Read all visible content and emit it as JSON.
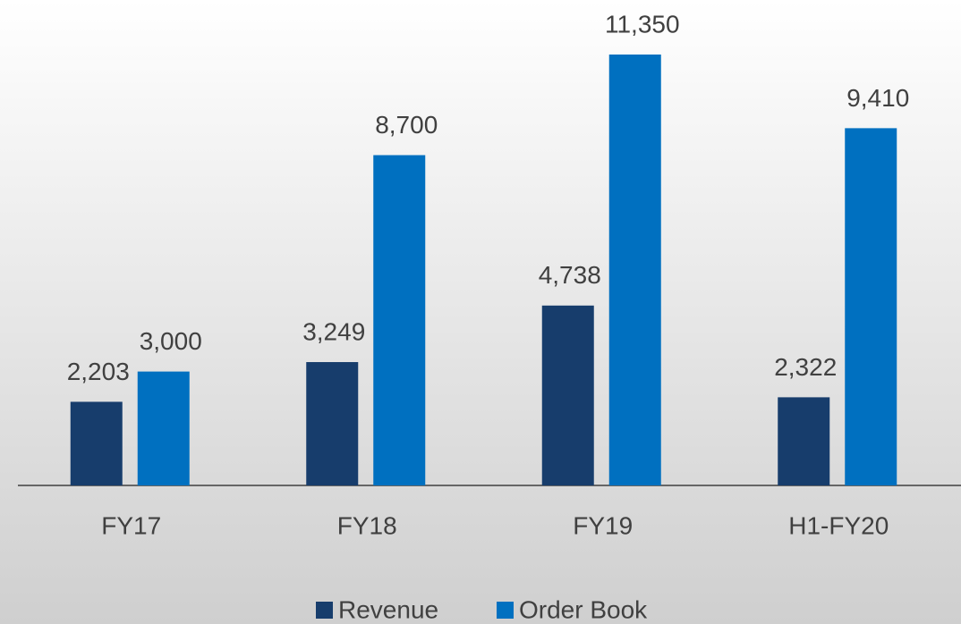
{
  "chart_data": {
    "type": "bar",
    "categories": [
      "FY17",
      "FY18",
      "FY19",
      "H1-FY20"
    ],
    "series": [
      {
        "name": "Revenue",
        "color": "#173d6c",
        "values": [
          2203,
          3249,
          4738,
          2322
        ],
        "value_labels": [
          "2,203",
          "3,249",
          "4,738",
          "2,322"
        ]
      },
      {
        "name": "Order Book",
        "color": "#0070c0",
        "values": [
          3000,
          8700,
          11350,
          9410
        ],
        "value_labels": [
          "3,000",
          "8,700",
          "11,350",
          "9,410"
        ]
      }
    ],
    "legend": "bottom"
  }
}
